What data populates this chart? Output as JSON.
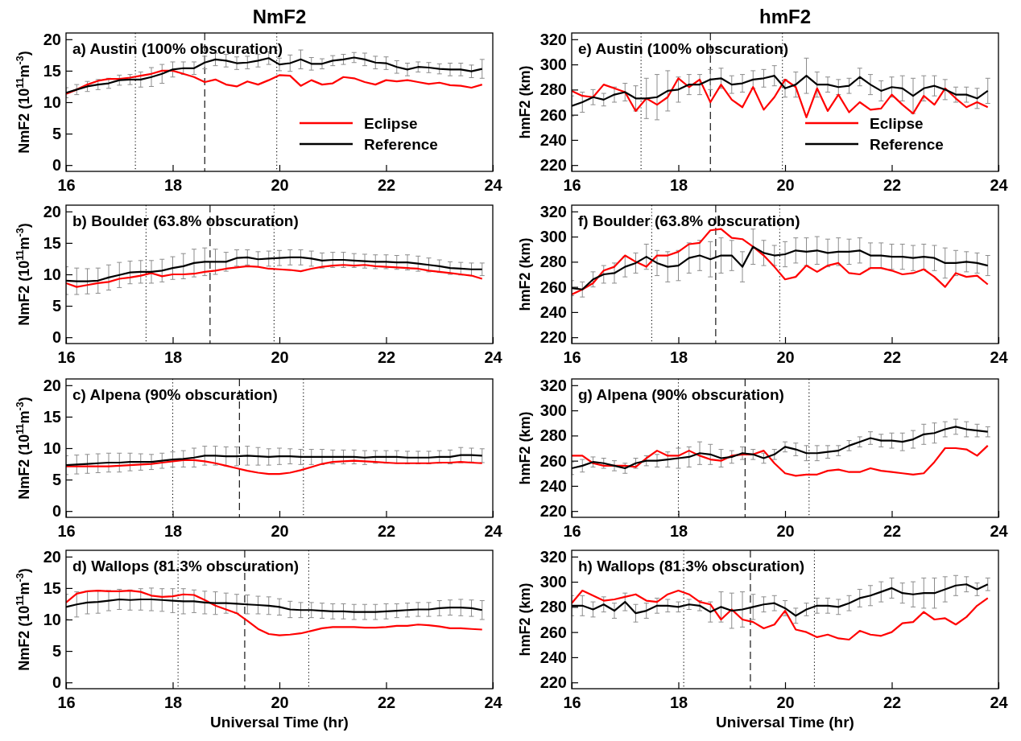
{
  "chart_data": [
    {
      "type": "line",
      "title": "NmF2",
      "subtitle": "a) Austin (100% obscuration)",
      "ylabel": "NmF2 (10$^{11}$m$^{-3}$)",
      "xlim": [
        16,
        24
      ],
      "xticks": [
        16,
        18,
        20,
        22,
        24
      ],
      "ylim": [
        -1,
        21
      ],
      "yticks": [
        0,
        5,
        10,
        15,
        20
      ],
      "legend": "bottom right",
      "x": [
        16,
        16.2,
        16.4,
        16.6,
        16.8,
        17,
        17.2,
        17.4,
        17.6,
        17.8,
        18,
        18.2,
        18.4,
        18.6,
        18.8,
        19,
        19.2,
        19.4,
        19.6,
        19.8,
        20,
        20.2,
        20.4,
        20.6,
        20.8,
        21,
        21.2,
        21.4,
        21.6,
        21.8,
        22,
        22.2,
        22.4,
        22.6,
        22.8,
        23,
        23.2,
        23.4,
        23.6,
        23.8
      ],
      "series": [
        {
          "name": "Eclipse",
          "color": "#ff0000",
          "values": [
            11.3,
            12,
            12.8,
            13.4,
            13.7,
            13.7,
            13.9,
            14.2,
            14.5,
            15,
            15,
            14.5,
            14,
            13.2,
            13.6,
            12.8,
            12.5,
            13.3,
            12.8,
            13.5,
            14.3,
            14.2,
            12.6,
            13.5,
            12.8,
            13,
            14,
            13.8,
            13.2,
            12.8,
            13.5,
            13.3,
            13.5,
            13.2,
            12.9,
            13.1,
            12.7,
            12.6,
            12.3,
            12.8
          ]
        },
        {
          "name": "Reference",
          "color": "#000000",
          "values": [
            11.5,
            12,
            12.5,
            12.8,
            13,
            13.5,
            13.6,
            13.6,
            14,
            14.5,
            15.2,
            15.4,
            15.4,
            16.3,
            16.8,
            16.6,
            16.2,
            16.3,
            16.6,
            17,
            16,
            16.2,
            16.8,
            16.1,
            16.1,
            16.6,
            16.8,
            17.1,
            16.8,
            16.3,
            16.2,
            15.6,
            15.2,
            15.6,
            15.5,
            15.3,
            15.2,
            15.2,
            14.9,
            15.3
          ],
          "errors": [
            0.8,
            0.8,
            0.8,
            0.8,
            0.8,
            0.8,
            0.8,
            1.2,
            1.5,
            1.5,
            1.2,
            1,
            1,
            1,
            1,
            1,
            1,
            1,
            1,
            1,
            1,
            1.3,
            1.5,
            1,
            0.8,
            0.8,
            0.8,
            0.8,
            1,
            1,
            1,
            1,
            1,
            0.8,
            0.8,
            0.8,
            1,
            1,
            1,
            1.5
          ]
        }
      ],
      "ref_lines": [
        {
          "axis": "x",
          "value": 17.3,
          "line_style": "dotted"
        },
        {
          "axis": "x",
          "value": 18.6,
          "line_style": "dashed"
        },
        {
          "axis": "x",
          "value": 19.95,
          "line_style": "dotted"
        }
      ]
    },
    {
      "type": "line",
      "title": "hmF2",
      "subtitle": "e) Austin (100% obscuration)",
      "ylabel": "hmF2 (km)",
      "xlim": [
        16,
        24
      ],
      "xticks": [
        16,
        18,
        20,
        22,
        24
      ],
      "ylim": [
        215,
        325
      ],
      "yticks": [
        220,
        240,
        260,
        280,
        300,
        320
      ],
      "legend": "bottom right",
      "x": [
        16,
        16.2,
        16.4,
        16.6,
        16.8,
        17,
        17.2,
        17.4,
        17.6,
        17.8,
        18,
        18.2,
        18.4,
        18.6,
        18.8,
        19,
        19.2,
        19.4,
        19.6,
        19.8,
        20,
        20.2,
        20.4,
        20.6,
        20.8,
        21,
        21.2,
        21.4,
        21.6,
        21.8,
        22,
        22.2,
        22.4,
        22.6,
        22.8,
        23,
        23.2,
        23.4,
        23.6,
        23.8
      ],
      "series": [
        {
          "name": "Eclipse",
          "color": "#ff0000",
          "values": [
            279,
            275,
            274,
            284,
            281,
            278,
            263,
            273,
            268,
            274,
            289,
            282,
            288,
            270,
            284,
            272,
            266,
            282,
            264,
            274,
            288,
            282,
            258,
            281,
            263,
            276,
            262,
            270,
            264,
            265,
            276,
            268,
            261,
            275,
            268,
            281,
            273,
            266,
            270,
            266
          ]
        },
        {
          "name": "Reference",
          "color": "#000000",
          "values": [
            267,
            270,
            274,
            272,
            276,
            278,
            273,
            273,
            274,
            279,
            280,
            284,
            284,
            288,
            289,
            284,
            285,
            288,
            289,
            291,
            281,
            284,
            291,
            284,
            284,
            282,
            283,
            290,
            284,
            279,
            282,
            281,
            275,
            281,
            283,
            280,
            276,
            276,
            273,
            279
          ],
          "errors": [
            8,
            8,
            6,
            5,
            6,
            7,
            10,
            16,
            18,
            16,
            10,
            8,
            8,
            8,
            8,
            7,
            7,
            7,
            7,
            8,
            7,
            10,
            14,
            10,
            6,
            6,
            6,
            7,
            8,
            8,
            8,
            10,
            14,
            10,
            8,
            8,
            6,
            6,
            8,
            10
          ]
        }
      ],
      "ref_lines": [
        {
          "axis": "x",
          "value": 17.3,
          "line_style": "dotted"
        },
        {
          "axis": "x",
          "value": 18.6,
          "line_style": "dashed"
        },
        {
          "axis": "x",
          "value": 19.95,
          "line_style": "dotted"
        }
      ]
    },
    {
      "type": "line",
      "subtitle": "b) Boulder (63.8% obscuration)",
      "ylabel": "NmF2 (10$^{11}$m$^{-3}$)",
      "xlim": [
        16,
        24
      ],
      "xticks": [
        16,
        18,
        20,
        22,
        24
      ],
      "ylim": [
        -1,
        21
      ],
      "yticks": [
        0,
        5,
        10,
        15,
        20
      ],
      "x": [
        16,
        16.2,
        16.4,
        16.6,
        16.8,
        17,
        17.2,
        17.4,
        17.6,
        17.8,
        18,
        18.2,
        18.4,
        18.6,
        18.8,
        19,
        19.2,
        19.4,
        19.6,
        19.8,
        20,
        20.2,
        20.4,
        20.6,
        20.8,
        21,
        21.2,
        21.4,
        21.6,
        21.8,
        22,
        22.2,
        22.4,
        22.6,
        22.8,
        23,
        23.2,
        23.4,
        23.6,
        23.8
      ],
      "series": [
        {
          "color": "#ff0000",
          "values": [
            8.6,
            8,
            8.3,
            8.6,
            8.8,
            9.3,
            9.5,
            9.8,
            10.2,
            9.7,
            10,
            10,
            10.1,
            10.4,
            10.6,
            10.9,
            11.1,
            11.3,
            11.2,
            10.9,
            10.8,
            10.7,
            10.5,
            10.9,
            11.2,
            11.4,
            11.5,
            11.4,
            11.5,
            11.3,
            11.2,
            11.1,
            11,
            10.9,
            10.6,
            10.4,
            10.2,
            10,
            9.8,
            9.3
          ]
        },
        {
          "color": "#000000",
          "values": [
            9,
            8.9,
            8.9,
            9,
            9.5,
            9.9,
            10.3,
            10.4,
            10.4,
            10.6,
            11,
            11.3,
            11.8,
            12,
            12,
            12,
            12.6,
            12.7,
            12.4,
            12.5,
            12.6,
            12.7,
            12.7,
            12.5,
            12.2,
            12.3,
            12.3,
            12.2,
            12.1,
            12,
            12,
            11.9,
            11.9,
            11.7,
            11.5,
            11.3,
            11,
            10.9,
            10.8,
            10.8
          ],
          "errors": [
            2.2,
            2.1,
            2,
            2,
            2,
            2,
            1.8,
            1.8,
            1.8,
            1.8,
            1.8,
            2,
            2.2,
            2.2,
            2,
            1.5,
            1.3,
            1.2,
            1.2,
            1.2,
            1.2,
            1.2,
            1.2,
            1.2,
            1.2,
            1.2,
            1.2,
            1.1,
            1.1,
            1.1,
            1.1,
            1.1,
            1.2,
            1.2,
            1.1,
            1,
            1,
            1,
            1,
            1
          ]
        }
      ],
      "ref_lines": [
        {
          "axis": "x",
          "value": 17.5,
          "line_style": "dotted"
        },
        {
          "axis": "x",
          "value": 18.7,
          "line_style": "dashed"
        },
        {
          "axis": "x",
          "value": 19.9,
          "line_style": "dotted"
        }
      ]
    },
    {
      "type": "line",
      "subtitle": "f) Boulder (63.8% obscuration)",
      "ylabel": "hmF2 (km)",
      "xlim": [
        16,
        24
      ],
      "xticks": [
        16,
        18,
        20,
        22,
        24
      ],
      "ylim": [
        215,
        325
      ],
      "yticks": [
        220,
        240,
        260,
        280,
        300,
        320
      ],
      "x": [
        16,
        16.2,
        16.4,
        16.6,
        16.8,
        17,
        17.2,
        17.4,
        17.6,
        17.8,
        18,
        18.2,
        18.4,
        18.6,
        18.8,
        19,
        19.2,
        19.4,
        19.6,
        19.8,
        20,
        20.2,
        20.4,
        20.6,
        20.8,
        21,
        21.2,
        21.4,
        21.6,
        21.8,
        22,
        22.2,
        22.4,
        22.6,
        22.8,
        23,
        23.2,
        23.4,
        23.6,
        23.8
      ],
      "series": [
        {
          "color": "#ff0000",
          "values": [
            254,
            258,
            263,
            273,
            276,
            285,
            280,
            276,
            285,
            285,
            288,
            294,
            295,
            305,
            306,
            299,
            298,
            292,
            285,
            276,
            266,
            268,
            277,
            272,
            277,
            279,
            271,
            270,
            275,
            275,
            273,
            270,
            271,
            274,
            268,
            260,
            271,
            268,
            269,
            262
          ]
        },
        {
          "color": "#000000",
          "values": [
            259,
            258,
            266,
            270,
            271,
            276,
            279,
            284,
            279,
            276,
            277,
            283,
            285,
            282,
            285,
            285,
            276,
            292,
            287,
            285,
            286,
            289,
            288,
            289,
            287,
            288,
            288,
            289,
            285,
            285,
            284,
            284,
            283,
            284,
            283,
            279,
            279,
            280,
            279,
            277
          ],
          "errors": [
            6,
            6,
            6,
            7,
            8,
            8,
            8,
            10,
            10,
            12,
            12,
            12,
            12,
            14,
            14,
            12,
            12,
            14,
            10,
            8,
            10,
            10,
            11,
            11,
            11,
            11,
            10,
            10,
            10,
            10,
            10,
            10,
            10,
            10,
            10,
            12,
            10,
            8,
            8,
            8
          ]
        }
      ],
      "ref_lines": [
        {
          "axis": "x",
          "value": 17.5,
          "line_style": "dotted"
        },
        {
          "axis": "x",
          "value": 18.7,
          "line_style": "dashed"
        },
        {
          "axis": "x",
          "value": 19.9,
          "line_style": "dotted"
        }
      ]
    },
    {
      "type": "line",
      "subtitle": "c) Alpena (90% obscuration)",
      "ylabel": "NmF2 (10$^{11}$m$^{-3}$)",
      "xlim": [
        16,
        24
      ],
      "xticks": [
        16,
        18,
        20,
        22,
        24
      ],
      "ylim": [
        -1,
        21
      ],
      "yticks": [
        0,
        5,
        10,
        15,
        20
      ],
      "x": [
        16,
        16.2,
        16.4,
        16.6,
        16.8,
        17,
        17.2,
        17.4,
        17.6,
        17.8,
        18,
        18.2,
        18.4,
        18.6,
        18.8,
        19,
        19.2,
        19.4,
        19.6,
        19.8,
        20,
        20.2,
        20.4,
        20.6,
        20.8,
        21,
        21.2,
        21.4,
        21.6,
        21.8,
        22,
        22.2,
        22.4,
        22.6,
        22.8,
        23,
        23.2,
        23.4,
        23.6,
        23.8
      ],
      "series": [
        {
          "color": "#ff0000",
          "values": [
            7.1,
            7.1,
            7.1,
            7.1,
            7.1,
            7.2,
            7.3,
            7.4,
            7.5,
            7.7,
            7.9,
            8.1,
            8.1,
            7.9,
            7.6,
            7.2,
            6.8,
            6.4,
            6.1,
            5.9,
            5.9,
            6.1,
            6.5,
            7,
            7.5,
            7.8,
            7.9,
            8,
            7.9,
            7.8,
            7.7,
            7.6,
            7.6,
            7.6,
            7.6,
            7.7,
            7.7,
            7.8,
            7.7,
            7.6
          ]
        },
        {
          "color": "#000000",
          "values": [
            7.3,
            7.4,
            7.5,
            7.6,
            7.7,
            7.7,
            7.8,
            7.8,
            7.8,
            8,
            8.2,
            8.3,
            8.5,
            8.8,
            8.8,
            8.7,
            8.7,
            8.8,
            8.7,
            8.6,
            8.7,
            8.7,
            8.6,
            8.6,
            8.6,
            8.6,
            8.6,
            8.6,
            8.5,
            8.6,
            8.6,
            8.6,
            8.5,
            8.5,
            8.5,
            8.6,
            8.6,
            8.9,
            8.9,
            8.8
          ],
          "errors": [
            1.5,
            1.5,
            1.5,
            1.5,
            1.5,
            1.5,
            1.4,
            1.3,
            1.2,
            1.2,
            1.2,
            1.3,
            1.5,
            1.5,
            1.5,
            1.5,
            1.5,
            1.5,
            1.4,
            1.3,
            1.3,
            1.2,
            1.2,
            1.2,
            1.2,
            1.1,
            1.1,
            1.1,
            1.1,
            1,
            1,
            1,
            1,
            1,
            1,
            1,
            1.1,
            1.2,
            1.1,
            1.1
          ]
        }
      ],
      "ref_lines": [
        {
          "axis": "x",
          "value": 18,
          "line_style": "dotted"
        },
        {
          "axis": "x",
          "value": 19.25,
          "line_style": "dashed"
        },
        {
          "axis": "x",
          "value": 20.45,
          "line_style": "dotted"
        }
      ]
    },
    {
      "type": "line",
      "subtitle": "g) Alpena (90% obscuration)",
      "ylabel": "hmF2 (km)",
      "xlim": [
        16,
        24
      ],
      "xticks": [
        16,
        18,
        20,
        22,
        24
      ],
      "ylim": [
        215,
        325
      ],
      "yticks": [
        220,
        240,
        260,
        280,
        300,
        320
      ],
      "x": [
        16,
        16.2,
        16.4,
        16.6,
        16.8,
        17,
        17.2,
        17.4,
        17.6,
        17.8,
        18,
        18.2,
        18.4,
        18.6,
        18.8,
        19,
        19.2,
        19.4,
        19.6,
        19.8,
        20,
        20.2,
        20.4,
        20.6,
        20.8,
        21,
        21.2,
        21.4,
        21.6,
        21.8,
        22,
        22.2,
        22.4,
        22.6,
        22.8,
        23,
        23.2,
        23.4,
        23.6,
        23.8
      ],
      "series": [
        {
          "color": "#ff0000",
          "values": [
            264,
            264,
            258,
            256,
            256,
            256,
            255,
            262,
            268,
            264,
            264,
            268,
            264,
            261,
            260,
            264,
            265,
            265,
            268,
            258,
            250,
            248,
            249,
            249,
            252,
            253,
            251,
            251,
            254,
            252,
            251,
            250,
            249,
            250,
            259,
            270,
            270,
            269,
            264,
            272
          ]
        },
        {
          "color": "#000000",
          "values": [
            254,
            256,
            259,
            258,
            256,
            254,
            258,
            260,
            260,
            261,
            262,
            263,
            266,
            265,
            262,
            263,
            266,
            265,
            262,
            265,
            271,
            269,
            266,
            266,
            267,
            268,
            272,
            275,
            278,
            276,
            276,
            275,
            277,
            281,
            282,
            285,
            287,
            285,
            284,
            283
          ],
          "errors": [
            5,
            5,
            4,
            4,
            4,
            4,
            4,
            4,
            5,
            6,
            8,
            8,
            9,
            8,
            7,
            5,
            5,
            4,
            4,
            4,
            4,
            5,
            6,
            6,
            5,
            4,
            4,
            4,
            5,
            5,
            6,
            7,
            7,
            8,
            8,
            6,
            6,
            6,
            5,
            4
          ]
        }
      ],
      "ref_lines": [
        {
          "axis": "x",
          "value": 18,
          "line_style": "dotted"
        },
        {
          "axis": "x",
          "value": 19.25,
          "line_style": "dashed"
        },
        {
          "axis": "x",
          "value": 20.45,
          "line_style": "dotted"
        }
      ]
    },
    {
      "type": "line",
      "subtitle": "d) Wallops (81.3% obscuration)",
      "xlabel": "Universal Time (hr)",
      "ylabel": "NmF2 (10$^{11}$m$^{-3}$)",
      "xlim": [
        16,
        24
      ],
      "xticks": [
        16,
        18,
        20,
        22,
        24
      ],
      "ylim": [
        -1,
        21
      ],
      "yticks": [
        0,
        5,
        10,
        15,
        20
      ],
      "x": [
        16,
        16.2,
        16.4,
        16.6,
        16.8,
        17,
        17.2,
        17.4,
        17.6,
        17.8,
        18,
        18.2,
        18.4,
        18.6,
        18.8,
        19,
        19.2,
        19.4,
        19.6,
        19.8,
        20,
        20.2,
        20.4,
        20.6,
        20.8,
        21,
        21.2,
        21.4,
        21.6,
        21.8,
        22,
        22.2,
        22.4,
        22.6,
        22.8,
        23,
        23.2,
        23.4,
        23.6,
        23.8
      ],
      "series": [
        {
          "color": "#ff0000",
          "values": [
            12.7,
            14.1,
            14.5,
            14.6,
            14.5,
            14.5,
            14.6,
            14.4,
            13.8,
            13.6,
            13.7,
            14,
            13.9,
            13.1,
            12.2,
            11.6,
            11,
            9.8,
            8.5,
            7.7,
            7.5,
            7.6,
            7.8,
            8.2,
            8.6,
            8.8,
            8.8,
            8.8,
            8.7,
            8.7,
            8.8,
            9,
            9,
            9.2,
            9.1,
            8.9,
            8.6,
            8.6,
            8.5,
            8.4
          ]
        },
        {
          "color": "#000000",
          "values": [
            12,
            12.4,
            12.7,
            12.8,
            13,
            13.2,
            13.1,
            13.2,
            13.2,
            13.1,
            13,
            12.9,
            12.9,
            12.7,
            12.6,
            12.6,
            12.5,
            12.4,
            12.3,
            12.2,
            12,
            11.6,
            11.5,
            11.5,
            11.4,
            11.3,
            11.3,
            11.2,
            11.2,
            11.2,
            11.3,
            11.4,
            11.5,
            11.6,
            11.6,
            11.8,
            11.9,
            11.9,
            11.8,
            11.5
          ],
          "errors": [
            2,
            2,
            1.8,
            1.8,
            1.6,
            1.6,
            1.6,
            1.7,
            1.8,
            1.8,
            1.9,
            2,
            1.8,
            1.8,
            1.8,
            1.6,
            1.5,
            1.5,
            1.4,
            1.4,
            1.3,
            1.3,
            1.2,
            1.2,
            1.2,
            1.2,
            1.2,
            1.2,
            1.2,
            1.2,
            1.2,
            1.1,
            1.1,
            1.1,
            1.1,
            1.2,
            1.2,
            1.3,
            1.3,
            1.5
          ]
        }
      ],
      "ref_lines": [
        {
          "axis": "x",
          "value": 18.1,
          "line_style": "dotted"
        },
        {
          "axis": "x",
          "value": 19.35,
          "line_style": "dashed"
        },
        {
          "axis": "x",
          "value": 20.55,
          "line_style": "dotted"
        }
      ]
    },
    {
      "type": "line",
      "subtitle": "h) Wallops (81.3% obscuration)",
      "xlabel": "Universal Time (hr)",
      "ylabel": "hmF2 (km)",
      "xlim": [
        16,
        24
      ],
      "xticks": [
        16,
        18,
        20,
        22,
        24
      ],
      "ylim": [
        215,
        325
      ],
      "yticks": [
        220,
        240,
        260,
        280,
        300,
        320
      ],
      "x": [
        16,
        16.2,
        16.4,
        16.6,
        16.8,
        17,
        17.2,
        17.4,
        17.6,
        17.8,
        18,
        18.2,
        18.4,
        18.6,
        18.8,
        19,
        19.2,
        19.4,
        19.6,
        19.8,
        20,
        20.2,
        20.4,
        20.6,
        20.8,
        21,
        21.2,
        21.4,
        21.6,
        21.8,
        22,
        22.2,
        22.4,
        22.6,
        22.8,
        23,
        23.2,
        23.4,
        23.6,
        23.8
      ],
      "series": [
        {
          "color": "#ff0000",
          "values": [
            283,
            293,
            289,
            285,
            286,
            288,
            290,
            285,
            284,
            290,
            293,
            290,
            284,
            282,
            270,
            278,
            270,
            268,
            263,
            266,
            277,
            262,
            260,
            256,
            258,
            255,
            254,
            261,
            258,
            257,
            260,
            267,
            268,
            276,
            270,
            271,
            266,
            272,
            281,
            287
          ]
        },
        {
          "color": "#000000",
          "values": [
            281,
            281,
            278,
            282,
            277,
            284,
            275,
            277,
            281,
            281,
            280,
            282,
            281,
            276,
            280,
            277,
            278,
            280,
            282,
            283,
            279,
            273,
            278,
            281,
            281,
            280,
            283,
            287,
            289,
            292,
            295,
            291,
            290,
            291,
            291,
            294,
            297,
            298,
            294,
            298
          ],
          "errors": [
            8,
            8,
            6,
            6,
            6,
            7,
            7,
            6,
            6,
            5,
            4,
            4,
            4,
            8,
            12,
            14,
            14,
            10,
            6,
            6,
            6,
            6,
            5,
            6,
            6,
            6,
            6,
            7,
            8,
            8,
            8,
            8,
            10,
            12,
            12,
            10,
            8,
            6,
            5,
            5
          ]
        }
      ],
      "ref_lines": [
        {
          "axis": "x",
          "value": 18.1,
          "line_style": "dotted"
        },
        {
          "axis": "x",
          "value": 19.35,
          "line_style": "dashed"
        },
        {
          "axis": "x",
          "value": 20.55,
          "line_style": "dotted"
        }
      ]
    }
  ]
}
